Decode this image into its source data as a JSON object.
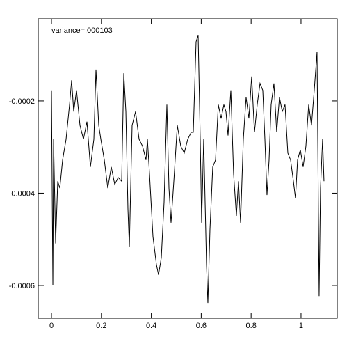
{
  "chart_data": {
    "type": "line",
    "annotation": "variance=.000103",
    "color": "#000000",
    "xlim": [
      -0.053,
      1.145
    ],
    "ylim": [
      -0.000671,
      -2.2e-05
    ],
    "xticks": [
      0,
      0.2,
      0.4,
      0.6,
      0.8,
      1
    ],
    "yticks": [
      -0.0006,
      -0.0004,
      -0.0002
    ],
    "x": [
      0,
      0.0056,
      0.0084,
      0.0167,
      0.0251,
      0.0334,
      0.0446,
      0.0585,
      0.0724,
      0.0808,
      0.0891,
      0.1003,
      0.1142,
      0.1281,
      0.1421,
      0.156,
      0.1699,
      0.1783,
      0.1894,
      0.1978,
      0.2117,
      0.2256,
      0.2396,
      0.2535,
      0.2674,
      0.2813,
      0.2897,
      0.2981,
      0.3064,
      0.312,
      0.3231,
      0.337,
      0.351,
      0.3649,
      0.3788,
      0.3844,
      0.3928,
      0.4067,
      0.4206,
      0.429,
      0.4401,
      0.4513,
      0.4624,
      0.4708,
      0.4791,
      0.4903,
      0.5042,
      0.5181,
      0.532,
      0.546,
      0.5599,
      0.5682,
      0.5794,
      0.5877,
      0.5961,
      0.6017,
      0.61,
      0.6212,
      0.6267,
      0.6351,
      0.6462,
      0.6574,
      0.6685,
      0.6797,
      0.6908,
      0.6992,
      0.7075,
      0.7187,
      0.7298,
      0.7409,
      0.7493,
      0.7577,
      0.7688,
      0.7799,
      0.7911,
      0.8022,
      0.8134,
      0.8245,
      0.8357,
      0.8468,
      0.8552,
      0.8635,
      0.8719,
      0.8802,
      0.8914,
      0.9025,
      0.9136,
      0.9248,
      0.9359,
      0.9471,
      0.9582,
      0.9694,
      0.9777,
      0.9861,
      0.9972,
      1.0084,
      1.0195,
      1.0306,
      1.0418,
      1.0529,
      1.0641,
      1.0724,
      1.078,
      1.0864,
      1.0919
    ],
    "values": [
      -0.000177,
      -0.0006,
      -0.000283,
      -0.000509,
      -0.000374,
      -0.000389,
      -0.000328,
      -0.000283,
      -0.000208,
      -0.000155,
      -0.000223,
      -0.000177,
      -0.000253,
      -0.000283,
      -0.000245,
      -0.000343,
      -0.000283,
      -0.000132,
      -0.000253,
      -0.000283,
      -0.000328,
      -0.000389,
      -0.000343,
      -0.000381,
      -0.000366,
      -0.000374,
      -0.00014,
      -0.000223,
      -0.000434,
      -0.000517,
      -0.000253,
      -0.000223,
      -0.000283,
      -0.000298,
      -0.000328,
      -0.000283,
      -0.000358,
      -0.000494,
      -0.000555,
      -0.000577,
      -0.00054,
      -0.000419,
      -0.000208,
      -0.000389,
      -0.000464,
      -0.000374,
      -0.000253,
      -0.000298,
      -0.000313,
      -0.000283,
      -0.000268,
      -0.000268,
      -7.2e-05,
      -5.7e-05,
      -0.000283,
      -0.000464,
      -0.000283,
      -0.000555,
      -0.000638,
      -0.000479,
      -0.000343,
      -0.000328,
      -0.000208,
      -0.000238,
      -0.000208,
      -0.000223,
      -0.000275,
      -0.000177,
      -0.000358,
      -0.000449,
      -0.000374,
      -0.000464,
      -0.000283,
      -0.000192,
      -0.000238,
      -0.000147,
      -0.000268,
      -0.000208,
      -0.000162,
      -0.000177,
      -0.000283,
      -0.000404,
      -0.000328,
      -0.000208,
      -0.000162,
      -0.000268,
      -0.000192,
      -0.000223,
      -0.000208,
      -0.000313,
      -0.000328,
      -0.000374,
      -0.000411,
      -0.000328,
      -0.000306,
      -0.000343,
      -0.000298,
      -0.000208,
      -0.000253,
      -0.000177,
      -9.4e-05,
      -0.000623,
      -0.000389,
      -0.000283,
      -0.000374
    ]
  }
}
